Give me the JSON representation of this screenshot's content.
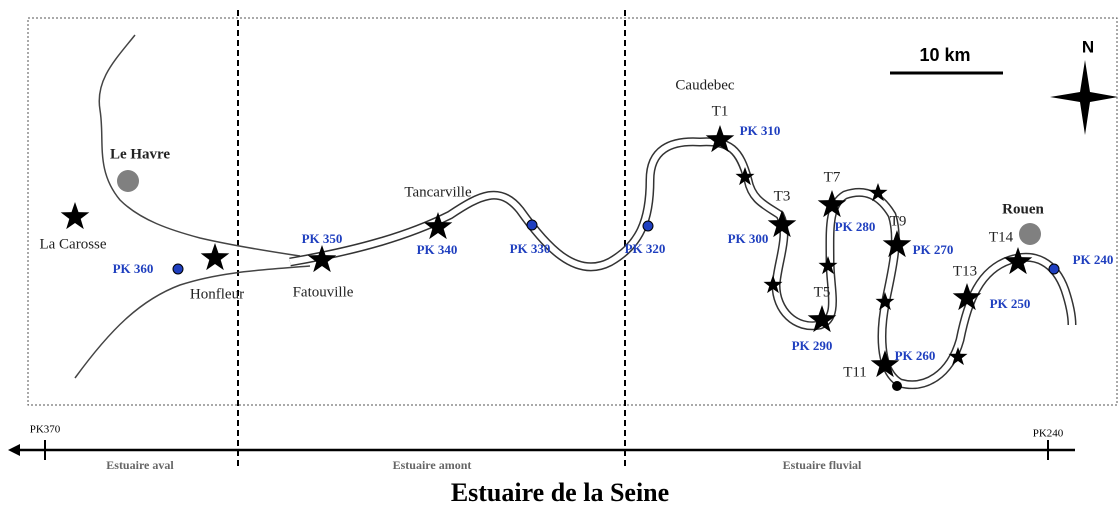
{
  "title": "Estuaire de la Seine",
  "scale_bar": "10 km",
  "north": "N",
  "places": [
    "Le Havre",
    "La Carosse",
    "Honfleur",
    "Fatouville",
    "Tancarville",
    "Caudebec",
    "Rouen"
  ],
  "stations": [
    "T1",
    "T3",
    "T5",
    "T7",
    "T9",
    "T11",
    "T13",
    "T14"
  ],
  "pk_labels": [
    "PK 360",
    "PK 350",
    "PK 340",
    "PK 330",
    "PK 320",
    "PK 310",
    "PK 300",
    "PK 290",
    "PK 280",
    "PK 270",
    "PK 260",
    "PK 250",
    "PK 240"
  ],
  "axis": {
    "left": "PK370",
    "right": "PK240"
  },
  "zones": [
    "Estuaire aval",
    "Estuaire amont",
    "Estuaire fluvial"
  ]
}
